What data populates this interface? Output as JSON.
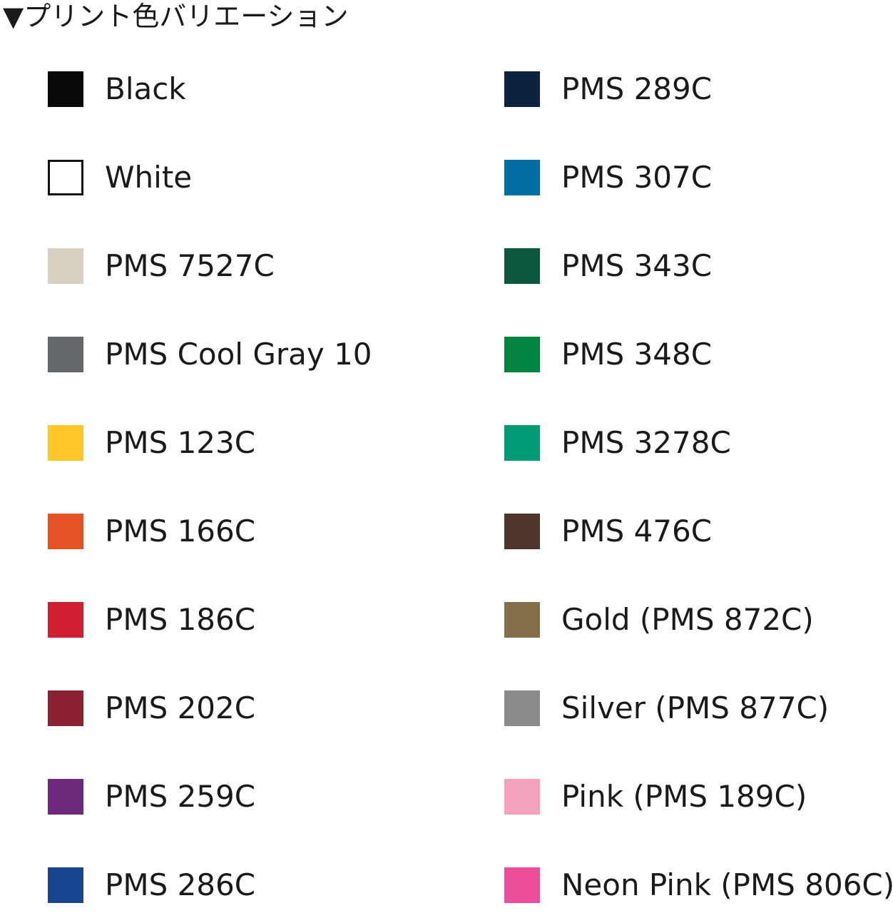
{
  "title": "▼プリント色バリエーション",
  "left_colors": [
    {
      "name": "Black",
      "color": "#08090b",
      "outlined": false
    },
    {
      "name": "White",
      "color": "#ffffff",
      "outlined": true
    },
    {
      "name": "PMS 7527C",
      "color": "#d8d0c3",
      "outlined": false
    },
    {
      "name": "PMS Cool Gray 10",
      "color": "#63666a",
      "outlined": false
    },
    {
      "name": "PMS 123C",
      "color": "#ffc72c",
      "outlined": false
    },
    {
      "name": "PMS 166C",
      "color": "#e55325",
      "outlined": false
    },
    {
      "name": "PMS 186C",
      "color": "#d11f32",
      "outlined": false
    },
    {
      "name": "PMS 202C",
      "color": "#8a2232",
      "outlined": false
    },
    {
      "name": "PMS 259C",
      "color": "#6d2a7c",
      "outlined": false
    },
    {
      "name": "PMS 286C",
      "color": "#17468f",
      "outlined": false
    }
  ],
  "right_colors": [
    {
      "name": "PMS 289C",
      "color": "#0c2240",
      "outlined": false
    },
    {
      "name": "PMS 307C",
      "color": "#006ea3",
      "outlined": false
    },
    {
      "name": "PMS 343C",
      "color": "#0d5640",
      "outlined": false
    },
    {
      "name": "PMS 348C",
      "color": "#00843f",
      "outlined": false
    },
    {
      "name": "PMS 3278C",
      "color": "#009a75",
      "outlined": false
    },
    {
      "name": "PMS 476C",
      "color": "#4e3429",
      "outlined": false
    },
    {
      "name": "Gold (PMS 872C)",
      "color": "#856f4b",
      "outlined": false
    },
    {
      "name": "Silver (PMS 877C)",
      "color": "#8a8c8c",
      "outlined": false
    },
    {
      "name": "Pink (PMS 189C)",
      "color": "#f5a2bc",
      "outlined": false
    },
    {
      "name": "Neon Pink (PMS 806C)",
      "color": "#ec4e9b",
      "outlined": false
    }
  ]
}
